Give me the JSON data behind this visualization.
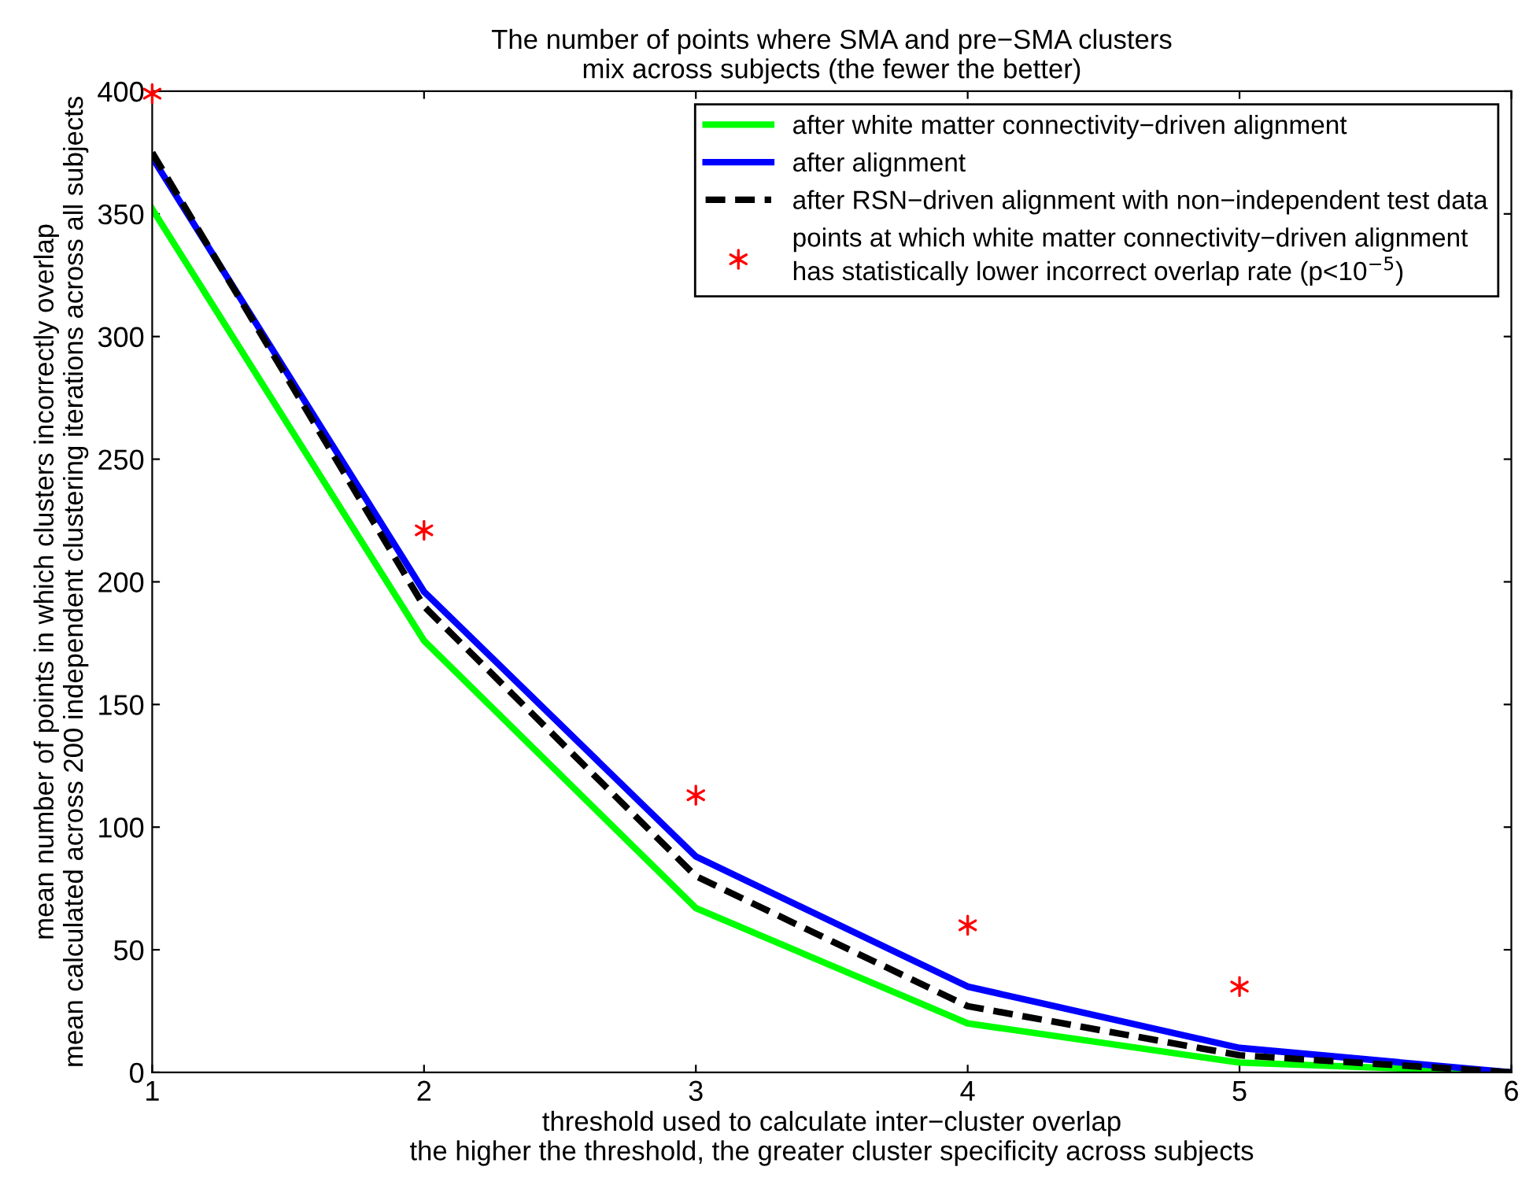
{
  "chart_data": {
    "type": "line",
    "title": "The number of points where SMA and pre−SMA clusters\nmix across subjects (the fewer the better)",
    "xlabel": "threshold used to calculate inter−cluster overlap\nthe higher the threshold, the greater cluster specificity across subjects",
    "ylabel": "mean number of points in which clusters incorrectly overlap\nmean calculated across 200 independent clustering iterations across all subjects",
    "x": [
      1,
      2,
      3,
      4,
      5,
      6
    ],
    "series": [
      {
        "name": "after white matter connectivity−driven alignment",
        "color": "#00ff00",
        "values": [
          352,
          176,
          67,
          20,
          4,
          0
        ],
        "line_style": "solid"
      },
      {
        "name": "after alignment",
        "color": "#0000ff",
        "values": [
          373,
          196,
          88,
          35,
          10,
          0
        ],
        "line_style": "solid"
      },
      {
        "name": "after RSN−driven alignment with non−independent test data",
        "color": "#000000",
        "values": [
          375,
          190,
          80,
          27,
          7,
          0
        ],
        "line_style": "dashed"
      },
      {
        "name": "points at which white matter connectivity−driven alignment\nhas statistically lower incorrect overlap rate (p<10$^{−5}$)",
        "color": "#ff0000",
        "type": "scatter",
        "marker": "cross",
        "x": [
          1,
          2,
          3,
          4,
          5
        ],
        "values": [
          399,
          221,
          113,
          60,
          35
        ]
      }
    ],
    "xlim": [
      1,
      6
    ],
    "xticks": [
      1,
      2,
      3,
      4,
      5,
      6
    ],
    "ylim": [
      0,
      400
    ],
    "yticks": [
      0,
      50,
      100,
      150,
      200,
      250,
      300,
      350,
      400
    ],
    "grid": false,
    "legend": "top right"
  }
}
